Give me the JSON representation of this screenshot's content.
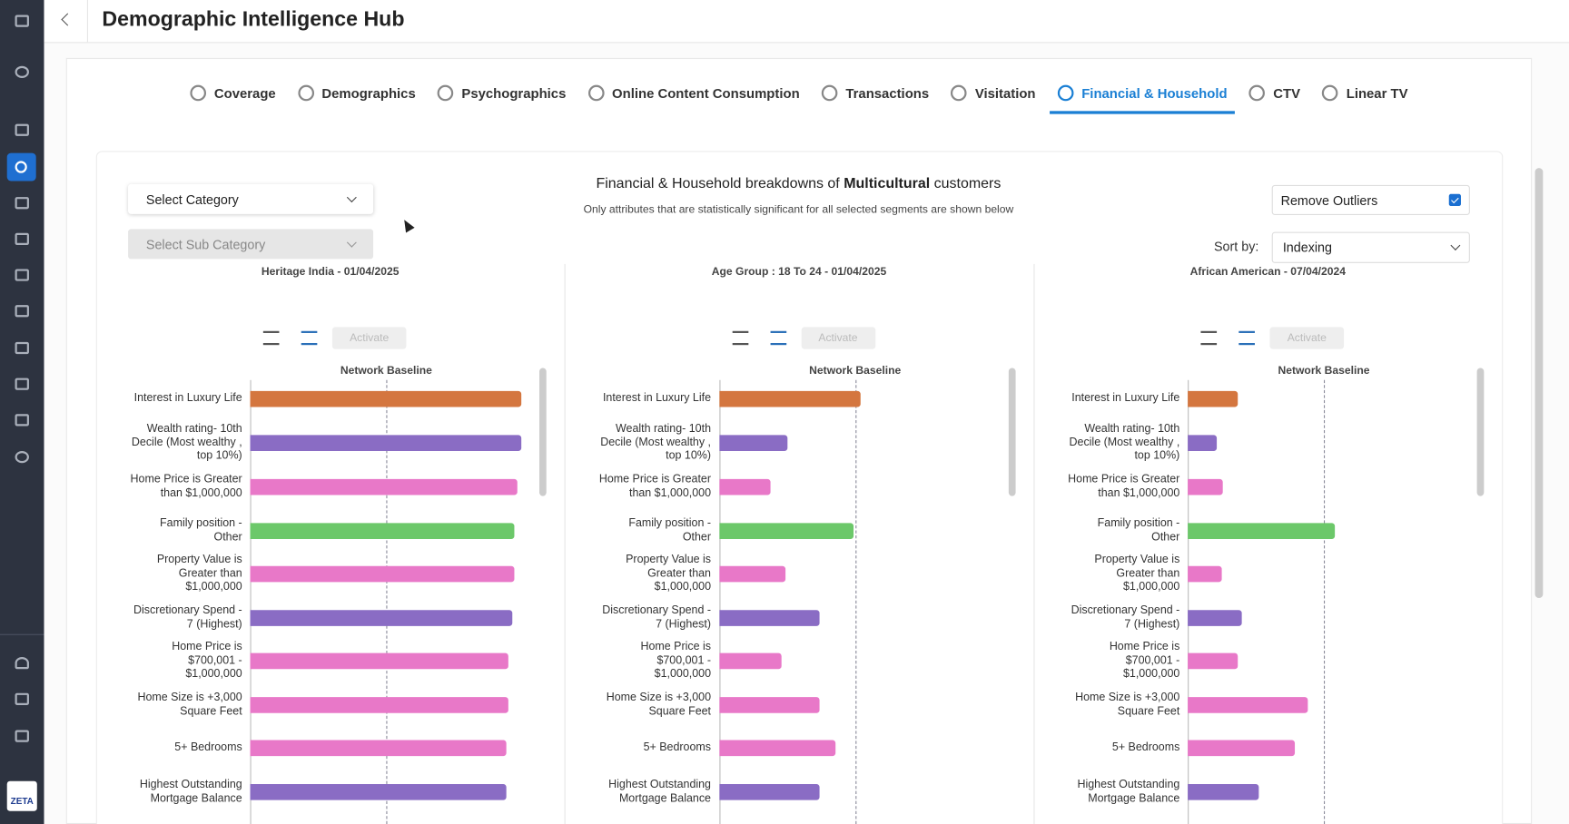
{
  "header": {
    "title": "Demographic Intelligence Hub"
  },
  "tabs": [
    "Coverage",
    "Demographics",
    "Psychographics",
    "Online Content Consumption",
    "Transactions",
    "Visitation",
    "Financial & Household",
    "CTV",
    "Linear TV"
  ],
  "active_tab": 6,
  "heading": {
    "prefix": "Financial & Household breakdowns of",
    "segment": "Multicultural",
    "suffix": "customers",
    "subtitle": "Only attributes that are statistically significant for all selected segments are shown below"
  },
  "filters": {
    "category": "Select Category",
    "subcategory": "Select Sub Category"
  },
  "remove_outliers": {
    "label": "Remove Outliers",
    "checked": true
  },
  "sort": {
    "label": "Sort by:",
    "value": "Indexing"
  },
  "logo": "ZETA",
  "panels": [
    {
      "title": "Heritage India - 01/04/2025",
      "action": "Activate",
      "baseline_label": "Network Baseline",
      "chart_data": {
        "type": "bar",
        "orientation": "horizontal",
        "categories": [
          "Interest in Luxury Life",
          "Wealth rating- 10th Decile (Most wealthy , top 10%)",
          "Home Price is Greater than $1,000,000",
          "Family position - Other",
          "Property Value is Greater than $1,000,000",
          "Discretionary Spend - 7 (Highest)",
          "Home Price is $700,001 - $1,000,000",
          "Home Size is +3,000 Square Feet",
          "5+ Bedrooms",
          "Highest Outstanding Mortgage Balance"
        ],
        "values": [
          199,
          199,
          196,
          194,
          194,
          193,
          190,
          190,
          188,
          188
        ],
        "colors": [
          "#d4763f",
          "#8a6cc4",
          "#e878c8",
          "#6cc86a",
          "#e878c8",
          "#8a6cc4",
          "#e878c8",
          "#e878c8",
          "#e878c8",
          "#8a6cc4"
        ],
        "xlim": [
          0,
          200
        ],
        "baseline": 100
      }
    },
    {
      "title": "Age Group : 18 To 24 - 01/04/2025",
      "action": "Activate",
      "baseline_label": "Network Baseline",
      "chart_data": {
        "type": "bar",
        "orientation": "horizontal",
        "categories": [
          "Interest in Luxury Life",
          "Wealth rating- 10th Decile (Most wealthy , top 10%)",
          "Home Price is Greater than $1,000,000",
          "Family position - Other",
          "Property Value is Greater than $1,000,000",
          "Discretionary Spend - 7 (Highest)",
          "Home Price is $700,001 - $1,000,000",
          "Home Size is +3,000 Square Feet",
          "5+ Bedrooms",
          "Highest Outstanding Mortgage Balance"
        ],
        "values": [
          104,
          50,
          38,
          99,
          49,
          74,
          46,
          74,
          86,
          74
        ],
        "colors": [
          "#d4763f",
          "#8a6cc4",
          "#e878c8",
          "#6cc86a",
          "#e878c8",
          "#8a6cc4",
          "#e878c8",
          "#e878c8",
          "#e878c8",
          "#8a6cc4"
        ],
        "xlim": [
          0,
          200
        ],
        "baseline": 100
      }
    },
    {
      "title": "African American - 07/04/2024",
      "action": "Activate",
      "baseline_label": "Network Baseline",
      "chart_data": {
        "type": "bar",
        "orientation": "horizontal",
        "categories": [
          "Interest in Luxury Life",
          "Wealth rating- 10th Decile (Most wealthy , top 10%)",
          "Home Price is Greater than $1,000,000",
          "Family position - Other",
          "Property Value is Greater than $1,000,000",
          "Discretionary Spend - 7 (Highest)",
          "Home Price is $700,001 - $1,000,000",
          "Home Size is +3,000 Square Feet",
          "5+ Bedrooms",
          "Highest Outstanding Mortgage Balance"
        ],
        "values": [
          37,
          21,
          26,
          108,
          25,
          40,
          37,
          88,
          79,
          52
        ],
        "colors": [
          "#d4763f",
          "#8a6cc4",
          "#e878c8",
          "#6cc86a",
          "#e878c8",
          "#8a6cc4",
          "#e878c8",
          "#e878c8",
          "#e878c8",
          "#8a6cc4"
        ],
        "xlim": [
          0,
          200
        ],
        "baseline": 100
      }
    }
  ]
}
